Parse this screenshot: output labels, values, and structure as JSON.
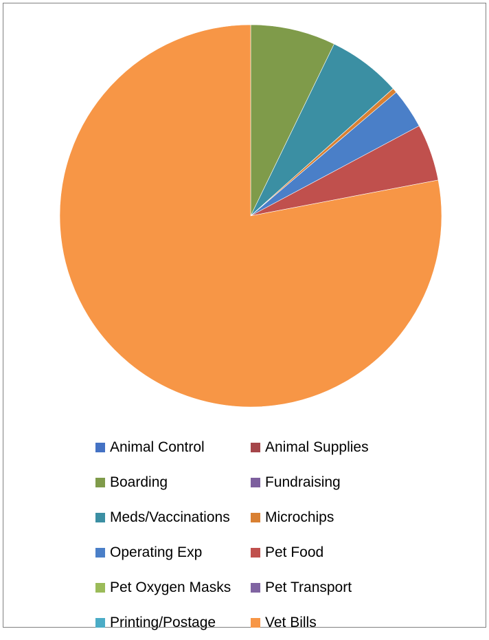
{
  "chart_data": {
    "type": "pie",
    "title": "",
    "start_angle_deg": 0,
    "direction": "clockwise",
    "legend_position": "bottom",
    "slices": [
      {
        "label": "Animal Control",
        "value": 0.0,
        "color": "#4472C4"
      },
      {
        "label": "Animal Supplies",
        "value": 0.0,
        "color": "#A5464A"
      },
      {
        "label": "Boarding",
        "value": 7.2,
        "color": "#7F9B4A"
      },
      {
        "label": "Fundraising",
        "value": 0.0,
        "color": "#7D5F9E"
      },
      {
        "label": "Meds/Vaccinations",
        "value": 6.2,
        "color": "#3B8FA3"
      },
      {
        "label": "Microchips",
        "value": 0.4,
        "color": "#D98032"
      },
      {
        "label": "Operating Exp",
        "value": 3.4,
        "color": "#4A7FC8"
      },
      {
        "label": "Pet Food",
        "value": 4.8,
        "color": "#C0504D"
      },
      {
        "label": "Pet Oxygen Masks",
        "value": 0.0,
        "color": "#9BBB59"
      },
      {
        "label": "Pet Transport",
        "value": 0.0,
        "color": "#8064A2"
      },
      {
        "label": "Printing/Postage",
        "value": 0.0,
        "color": "#4BACC6"
      },
      {
        "label": "Vet Bills",
        "value": 78.0,
        "color": "#F79646"
      }
    ]
  }
}
